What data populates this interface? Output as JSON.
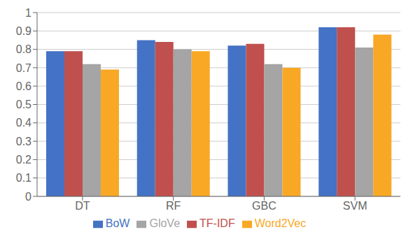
{
  "chart_data": {
    "type": "bar",
    "categories": [
      "DT",
      "RF",
      "GBC",
      "SVM"
    ],
    "series": [
      {
        "name": "BoW",
        "color": "#4472C4",
        "values": [
          0.79,
          0.85,
          0.82,
          0.92
        ]
      },
      {
        "name": "TF-IDF",
        "color": "#C0504D",
        "values": [
          0.79,
          0.84,
          0.83,
          0.92
        ]
      },
      {
        "name": "GloVe",
        "color": "#A5A5A5",
        "values": [
          0.72,
          0.8,
          0.72,
          0.81
        ]
      },
      {
        "name": "Word2Vec",
        "color": "#F9A825",
        "values": [
          0.69,
          0.79,
          0.7,
          0.88
        ]
      }
    ],
    "ylim": [
      0,
      1.0
    ],
    "yticks": [
      0,
      0.1,
      0.2,
      0.3,
      0.4,
      0.5,
      0.6,
      0.7,
      0.8,
      0.9,
      1.0
    ],
    "grid": true,
    "legend": "bottom"
  }
}
